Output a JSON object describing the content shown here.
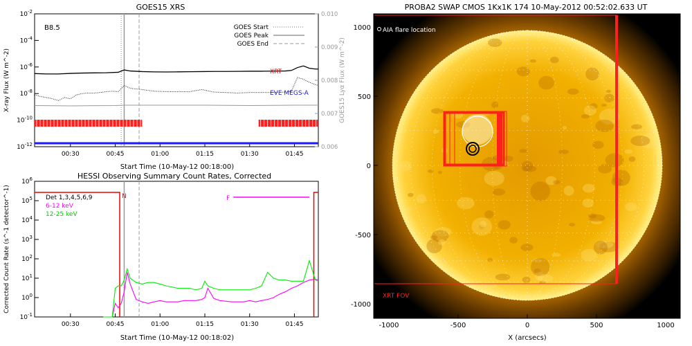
{
  "chart_data": [
    {
      "type": "line",
      "title": "GOES15 XRS",
      "xlabel": "Start Time (10-May-12 00:18:00)",
      "ylabel": "X-ray Flux (W m^-2)",
      "y2label": "GOES15 Lyα Flux (W m^-2)",
      "x_ticks": [
        "00:30",
        "00:45",
        "01:00",
        "01:15",
        "01:30",
        "01:45"
      ],
      "y_ticks": [
        "10^-12",
        "10^-10",
        "10^-8",
        "10^-6",
        "10^-4",
        "10^-2"
      ],
      "y2_ticks": [
        "0.006",
        "0.007",
        "0.008",
        "0.009",
        "0.010"
      ],
      "y_scale": "log",
      "ylim": [
        1e-12,
        0.01
      ],
      "y2lim": [
        0.006,
        0.01
      ],
      "xlim_minutes": [
        18,
        53
      ],
      "annotation": "B8.5",
      "legend": [
        {
          "name": "GOES Start",
          "style": "dotted"
        },
        {
          "name": "GOES Peak",
          "style": "solid"
        },
        {
          "name": "GOES End",
          "style": "dashed"
        }
      ],
      "labels": {
        "xrt": "XRT",
        "eve": "EVE MEGS-A"
      },
      "markers_minutes": {
        "start": 47.0,
        "peak": 48.0,
        "end": 53.0
      },
      "xrt_coverage_minutes": [
        [
          18,
          54
        ],
        [
          93,
          113
        ]
      ],
      "series": [
        {
          "name": "long",
          "x": [
            18,
            22,
            26,
            30,
            34,
            38,
            42,
            46,
            48,
            50,
            54,
            58,
            62,
            66,
            70,
            74,
            78,
            82,
            86,
            90,
            94,
            98,
            102,
            104,
            106,
            108,
            110,
            112,
            113
          ],
          "y": [
            3.2e-07,
            3e-07,
            3e-07,
            3.3e-07,
            3.5e-07,
            3.6e-07,
            3.7e-07,
            4e-07,
            6e-07,
            5e-07,
            4.5e-07,
            4.3e-07,
            4.2e-07,
            4.3e-07,
            4.4e-07,
            4.5e-07,
            4.6e-07,
            4.6e-07,
            4.7e-07,
            4.8e-07,
            4.8e-07,
            4.9e-07,
            5e-07,
            5.5e-07,
            9e-07,
            1.2e-06,
            8e-07,
            7e-07,
            7e-07
          ]
        },
        {
          "name": "short",
          "x": [
            18,
            20,
            22,
            24,
            26,
            28,
            30,
            32,
            34,
            36,
            38,
            40,
            42,
            44,
            46,
            48,
            50,
            54,
            58,
            62,
            66,
            70,
            74,
            78,
            82,
            86,
            90,
            94,
            98,
            102,
            104,
            106,
            108,
            110,
            113
          ],
          "y": [
            8e-09,
            6e-09,
            5e-09,
            4e-09,
            3e-09,
            5e-09,
            4e-09,
            8e-09,
            1e-08,
            1.1e-08,
            1.1e-08,
            1.2e-08,
            1.4e-08,
            1.5e-08,
            1.4e-08,
            4e-08,
            2.5e-08,
            2e-08,
            1.5e-08,
            1.4e-08,
            1.4e-08,
            1.4e-08,
            2e-08,
            1.3e-08,
            1.2e-08,
            1.1e-08,
            1.2e-08,
            1.2e-08,
            1.2e-08,
            1.3e-08,
            1.5e-08,
            1.6e-07,
            1.2e-07,
            7e-08,
            4e-08
          ]
        },
        {
          "name": "lya",
          "x": [
            18,
            30,
            45,
            48,
            60,
            75,
            90,
            105,
            113
          ],
          "y": [
            0.00724,
            0.00723,
            0.00724,
            0.00725,
            0.00725,
            0.00725,
            0.00724,
            0.00725,
            0.00725
          ]
        }
      ]
    },
    {
      "type": "line",
      "title": "HESSI Observing Summary Count Rates, Corrected",
      "xlabel": "Start Time (10-May-12 00:18:02)",
      "ylabel": "Corrected Count Rate (s^-1 detector^-1)",
      "x_ticks": [
        "00:30",
        "00:45",
        "01:00",
        "01:15",
        "01:30",
        "01:45"
      ],
      "y_ticks": [
        "10^-1",
        "10^0",
        "10^1",
        "10^2",
        "10^3",
        "10^4",
        "10^5",
        "10^6"
      ],
      "y_scale": "log",
      "ylim": [
        0.1,
        1000000.0
      ],
      "legend": [
        {
          "name": "Det 1,3,4,5,6,9",
          "color": "#000000"
        },
        {
          "name": "6-12 keV",
          "color": "#ff00ff"
        },
        {
          "name": "12-25 keV",
          "color": "#00ee00"
        }
      ],
      "flags": [
        {
          "label": "N",
          "x_minutes": 46.5
        },
        {
          "label": "F",
          "x_minutes": 85
        }
      ],
      "series": [
        {
          "name": "6-12 keV",
          "x": [
            41,
            44,
            45,
            46,
            47,
            48,
            49,
            50,
            52,
            54,
            56,
            58,
            60,
            62,
            64,
            66,
            68,
            70,
            72,
            74,
            75,
            76,
            78,
            80,
            84,
            88,
            90,
            92,
            94,
            96,
            98,
            100,
            102,
            104,
            106,
            108,
            110,
            112,
            113
          ],
          "y": [
            0.1,
            0.1,
            0.5,
            0.3,
            0.5,
            2,
            20,
            5,
            0.8,
            0.6,
            0.5,
            0.6,
            0.7,
            0.6,
            0.6,
            0.6,
            0.7,
            0.7,
            0.7,
            0.8,
            1,
            3,
            0.9,
            0.7,
            0.6,
            0.6,
            0.7,
            0.6,
            0.7,
            0.8,
            1,
            1.5,
            2,
            3,
            4,
            6,
            8,
            9,
            8
          ]
        },
        {
          "name": "12-25 keV",
          "x": [
            41,
            44,
            45,
            46,
            47,
            48,
            49,
            50,
            52,
            54,
            56,
            58,
            60,
            62,
            64,
            66,
            68,
            70,
            72,
            74,
            75,
            76,
            78,
            80,
            84,
            88,
            90,
            92,
            94,
            96,
            98,
            100,
            102,
            104,
            106,
            108,
            110,
            112,
            113
          ],
          "y": [
            0.1,
            0.1,
            3,
            4,
            4,
            8,
            30,
            10,
            6,
            5,
            6,
            6,
            5,
            4,
            3.5,
            3,
            3,
            3,
            2.5,
            3,
            7,
            4,
            3,
            2.5,
            2.5,
            2.5,
            2.5,
            3,
            4,
            20,
            10,
            8,
            8,
            7,
            7,
            7,
            80,
            8,
            7
          ]
        }
      ]
    }
  ],
  "image_panel": {
    "title": "PROBA2 SWAP CMOS 1Kx1K 174 10-May-2012 00:52:02.633 UT",
    "xlabel": "X (arcsecs)",
    "x_ticks": [
      "-1000",
      "-500",
      "0",
      "500",
      "1000"
    ],
    "y_ticks": [
      "1000",
      "500",
      "0",
      "-500",
      "-1000"
    ],
    "aia_label": "AIA flare location",
    "fov_label": "XRT FOV",
    "colors": {
      "sun": "#f2b000",
      "xrt": "#ff1f1f"
    }
  }
}
